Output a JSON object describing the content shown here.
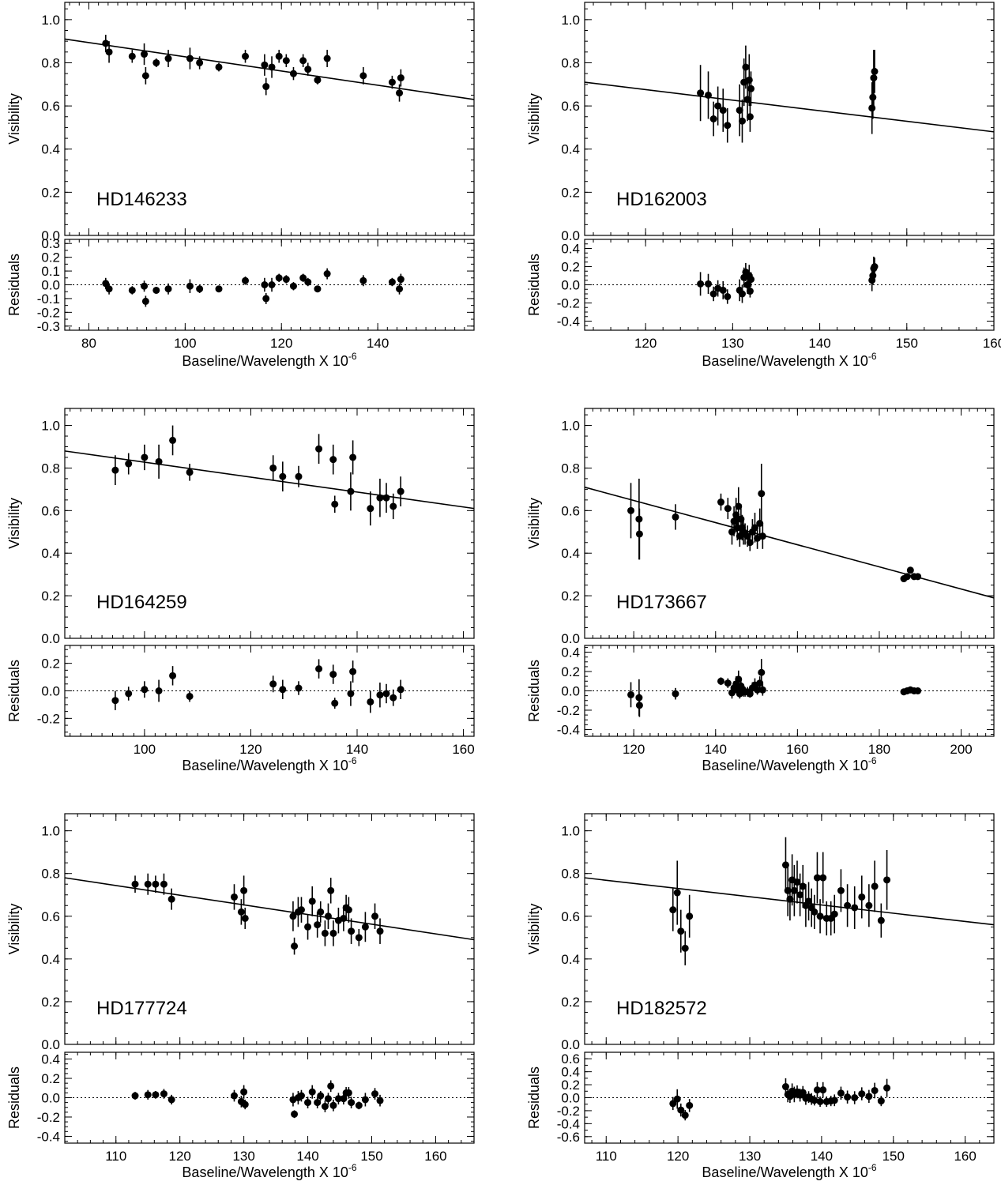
{
  "chart_data": [
    {
      "type": "scatter",
      "star": "HD146233",
      "xlabel": "Baseline/Wavelength X 10",
      "xlabel_exp": "-6",
      "ylabel_top": "Visibility",
      "ylabel_bottom": "Residuals",
      "xlim": [
        75,
        160
      ],
      "xticks": [
        80,
        100,
        120,
        140
      ],
      "ylim_top": [
        0,
        1.08
      ],
      "yticks_top": [
        "0.0",
        "0.2",
        "0.4",
        "0.6",
        "0.8",
        "1.0"
      ],
      "ylim_bottom": [
        -0.33,
        0.33
      ],
      "yticks_bottom": [
        "-0.3",
        "-0.2",
        "-0.1",
        "0.0",
        "0.1",
        "0.2",
        "0.3"
      ],
      "fit_line": {
        "x": [
          75,
          160
        ],
        "y": [
          0.91,
          0.63
        ]
      },
      "x": [
        83.5,
        84.2,
        89.0,
        91.5,
        91.8,
        94.0,
        96.5,
        101.0,
        103.0,
        107.0,
        112.5,
        116.5,
        116.8,
        118.0,
        119.5,
        121.0,
        122.5,
        124.5,
        125.5,
        127.5,
        129.5,
        137.0,
        143.0,
        144.5,
        144.8
      ],
      "visibility": [
        0.89,
        0.85,
        0.83,
        0.84,
        0.74,
        0.8,
        0.82,
        0.82,
        0.8,
        0.78,
        0.83,
        0.79,
        0.69,
        0.78,
        0.83,
        0.81,
        0.75,
        0.81,
        0.77,
        0.72,
        0.82,
        0.74,
        0.71,
        0.66,
        0.73
      ],
      "vis_err": [
        0.04,
        0.05,
        0.03,
        0.05,
        0.04,
        0.02,
        0.04,
        0.05,
        0.03,
        0.02,
        0.03,
        0.05,
        0.04,
        0.05,
        0.03,
        0.03,
        0.03,
        0.03,
        0.03,
        0.02,
        0.04,
        0.04,
        0.03,
        0.04,
        0.04
      ],
      "residuals": [
        0.01,
        -0.03,
        -0.04,
        -0.01,
        -0.12,
        -0.04,
        -0.03,
        -0.01,
        -0.03,
        -0.03,
        0.03,
        0.0,
        -0.1,
        0.0,
        0.05,
        0.04,
        -0.01,
        0.05,
        0.02,
        -0.03,
        0.08,
        0.03,
        0.02,
        -0.03,
        0.04
      ],
      "res_err": [
        0.04,
        0.04,
        0.03,
        0.04,
        0.04,
        0.02,
        0.04,
        0.05,
        0.03,
        0.02,
        0.03,
        0.05,
        0.04,
        0.05,
        0.03,
        0.03,
        0.03,
        0.03,
        0.03,
        0.02,
        0.04,
        0.04,
        0.03,
        0.04,
        0.04
      ]
    },
    {
      "type": "scatter",
      "star": "HD162003",
      "xlabel": "Baseline/Wavelength X 10",
      "xlabel_exp": "-6",
      "ylabel_top": "Visibility",
      "ylabel_bottom": "Residuals",
      "xlim": [
        113,
        160
      ],
      "xticks": [
        120,
        130,
        140,
        150,
        160
      ],
      "ylim_top": [
        0,
        1.08
      ],
      "yticks_top": [
        "0.0",
        "0.2",
        "0.4",
        "0.6",
        "0.8",
        "1.0"
      ],
      "ylim_bottom": [
        -0.5,
        0.5
      ],
      "yticks_bottom": [
        "-0.4",
        "-0.2",
        "0.0",
        "0.2",
        "0.4"
      ],
      "fit_line": {
        "x": [
          113,
          160
        ],
        "y": [
          0.71,
          0.48
        ]
      },
      "x": [
        126.3,
        127.2,
        127.8,
        128.3,
        128.9,
        129.4,
        130.8,
        131.1,
        131.3,
        131.5,
        131.7,
        131.9,
        132.0,
        132.1,
        146.0,
        146.1,
        146.2,
        146.3
      ],
      "visibility": [
        0.66,
        0.65,
        0.54,
        0.6,
        0.58,
        0.51,
        0.58,
        0.53,
        0.71,
        0.78,
        0.63,
        0.72,
        0.55,
        0.68,
        0.59,
        0.64,
        0.73,
        0.76
      ],
      "vis_err": [
        0.13,
        0.11,
        0.08,
        0.09,
        0.1,
        0.08,
        0.12,
        0.1,
        0.11,
        0.1,
        0.1,
        0.12,
        0.07,
        0.08,
        0.12,
        0.1,
        0.13,
        0.1
      ],
      "residuals": [
        0.01,
        0.01,
        -0.1,
        -0.04,
        -0.06,
        -0.13,
        -0.06,
        -0.1,
        0.08,
        0.14,
        0.0,
        0.1,
        -0.07,
        0.06,
        0.05,
        0.1,
        0.18,
        0.2
      ],
      "res_err": [
        0.13,
        0.11,
        0.08,
        0.09,
        0.1,
        0.08,
        0.12,
        0.1,
        0.11,
        0.1,
        0.1,
        0.12,
        0.07,
        0.08,
        0.12,
        0.1,
        0.13,
        0.1
      ]
    },
    {
      "type": "scatter",
      "star": "HD164259",
      "xlabel": "Baseline/Wavelength X 10",
      "xlabel_exp": "-6",
      "ylabel_top": "Visibility",
      "ylabel_bottom": "Residuals",
      "xlim": [
        85,
        162
      ],
      "xticks": [
        100,
        120,
        140,
        160
      ],
      "ylim_top": [
        0,
        1.08
      ],
      "yticks_top": [
        "0.0",
        "0.2",
        "0.4",
        "0.6",
        "0.8",
        "1.0"
      ],
      "ylim_bottom": [
        -0.33,
        0.33
      ],
      "yticks_bottom": [
        "-0.2",
        "0.0",
        "0.2"
      ],
      "fit_line": {
        "x": [
          85,
          162
        ],
        "y": [
          0.88,
          0.61
        ]
      },
      "x": [
        94.5,
        97.0,
        100.0,
        102.7,
        105.3,
        108.5,
        124.2,
        126.0,
        129.0,
        132.8,
        135.5,
        135.8,
        138.8,
        139.2,
        142.5,
        144.3,
        145.5,
        146.8,
        148.2
      ],
      "visibility": [
        0.79,
        0.82,
        0.85,
        0.83,
        0.93,
        0.78,
        0.8,
        0.76,
        0.76,
        0.89,
        0.84,
        0.63,
        0.69,
        0.85,
        0.61,
        0.66,
        0.66,
        0.62,
        0.69
      ],
      "vis_err": [
        0.07,
        0.05,
        0.06,
        0.08,
        0.07,
        0.04,
        0.06,
        0.07,
        0.05,
        0.07,
        0.07,
        0.04,
        0.09,
        0.08,
        0.08,
        0.09,
        0.07,
        0.06,
        0.07
      ],
      "residuals": [
        -0.07,
        -0.02,
        0.01,
        0.0,
        0.11,
        -0.04,
        0.05,
        0.01,
        0.02,
        0.16,
        0.12,
        -0.09,
        -0.02,
        0.14,
        -0.08,
        -0.03,
        -0.02,
        -0.05,
        0.01
      ],
      "res_err": [
        0.07,
        0.05,
        0.06,
        0.08,
        0.07,
        0.04,
        0.06,
        0.07,
        0.05,
        0.07,
        0.07,
        0.04,
        0.09,
        0.08,
        0.08,
        0.09,
        0.07,
        0.06,
        0.07
      ]
    },
    {
      "type": "scatter",
      "star": "HD173667",
      "xlabel": "Baseline/Wavelength X 10",
      "xlabel_exp": "-6",
      "ylabel_top": "Visibility",
      "ylabel_bottom": "Residuals",
      "xlim": [
        108,
        208
      ],
      "xticks": [
        120,
        140,
        160,
        180,
        200
      ],
      "ylim_top": [
        0,
        1.08
      ],
      "yticks_top": [
        "0.0",
        "0.2",
        "0.4",
        "0.6",
        "0.8",
        "1.0"
      ],
      "ylim_bottom": [
        -0.47,
        0.47
      ],
      "yticks_bottom": [
        "-0.4",
        "-0.2",
        "0.0",
        "0.2",
        "0.4"
      ],
      "fit_line": {
        "x": [
          108,
          208
        ],
        "y": [
          0.71,
          0.19
        ]
      },
      "x": [
        119.3,
        121.3,
        121.4,
        130.2,
        141.3,
        143.0,
        144.0,
        144.5,
        145.0,
        145.3,
        145.6,
        145.9,
        146.2,
        146.5,
        146.8,
        147.2,
        147.8,
        148.4,
        149.0,
        149.6,
        150.2,
        150.8,
        151.2,
        151.5,
        186.0,
        186.8,
        187.6,
        188.5,
        189.4
      ],
      "visibility": [
        0.6,
        0.56,
        0.49,
        0.57,
        0.64,
        0.61,
        0.5,
        0.55,
        0.58,
        0.52,
        0.62,
        0.48,
        0.56,
        0.52,
        0.5,
        0.49,
        0.48,
        0.45,
        0.5,
        0.52,
        0.47,
        0.54,
        0.68,
        0.48,
        0.28,
        0.29,
        0.32,
        0.29,
        0.29
      ],
      "vis_err": [
        0.13,
        0.19,
        0.12,
        0.06,
        0.04,
        0.05,
        0.06,
        0.07,
        0.08,
        0.06,
        0.09,
        0.05,
        0.07,
        0.06,
        0.06,
        0.05,
        0.05,
        0.04,
        0.06,
        0.07,
        0.05,
        0.07,
        0.14,
        0.06,
        0.01,
        0.01,
        0.01,
        0.01,
        0.01
      ],
      "residuals": [
        -0.04,
        -0.07,
        -0.15,
        -0.03,
        0.1,
        0.08,
        -0.02,
        0.03,
        0.07,
        0.01,
        0.12,
        -0.03,
        0.05,
        0.02,
        0.0,
        -0.01,
        -0.01,
        -0.03,
        0.03,
        0.06,
        0.01,
        0.08,
        0.19,
        0.01,
        -0.01,
        0.0,
        0.01,
        0.0,
        0.0
      ],
      "res_err": [
        0.13,
        0.19,
        0.12,
        0.06,
        0.04,
        0.05,
        0.06,
        0.07,
        0.08,
        0.06,
        0.09,
        0.05,
        0.07,
        0.06,
        0.06,
        0.05,
        0.05,
        0.04,
        0.06,
        0.07,
        0.05,
        0.07,
        0.14,
        0.06,
        0.01,
        0.01,
        0.01,
        0.01,
        0.01
      ]
    },
    {
      "type": "scatter",
      "star": "HD177724",
      "xlabel": "Baseline/Wavelength X 10",
      "xlabel_exp": "-6",
      "ylabel_top": "Visibility",
      "ylabel_bottom": "Residuals",
      "xlim": [
        102,
        166
      ],
      "xticks": [
        110,
        120,
        130,
        140,
        150,
        160
      ],
      "ylim_top": [
        0,
        1.08
      ],
      "yticks_top": [
        "0.0",
        "0.2",
        "0.4",
        "0.6",
        "0.8",
        "1.0"
      ],
      "ylim_bottom": [
        -0.47,
        0.47
      ],
      "yticks_bottom": [
        "-0.4",
        "-0.2",
        "0.0",
        "0.2",
        "0.4"
      ],
      "fit_line": {
        "x": [
          102,
          166
        ],
        "y": [
          0.78,
          0.49
        ]
      },
      "x": [
        113.0,
        115.0,
        116.2,
        117.5,
        118.7,
        128.5,
        129.6,
        130.0,
        130.2,
        137.7,
        137.9,
        138.5,
        139.0,
        140.0,
        140.7,
        141.5,
        142.0,
        142.7,
        143.2,
        143.6,
        144.0,
        144.8,
        145.6,
        146.0,
        146.4,
        146.8,
        148.0,
        149.0,
        150.5,
        151.3
      ],
      "visibility": [
        0.75,
        0.75,
        0.75,
        0.75,
        0.68,
        0.69,
        0.62,
        0.72,
        0.59,
        0.6,
        0.46,
        0.62,
        0.63,
        0.55,
        0.67,
        0.56,
        0.62,
        0.52,
        0.6,
        0.72,
        0.52,
        0.58,
        0.59,
        0.64,
        0.63,
        0.53,
        0.5,
        0.55,
        0.6,
        0.53
      ],
      "vis_err": [
        0.04,
        0.05,
        0.04,
        0.05,
        0.05,
        0.06,
        0.06,
        0.07,
        0.05,
        0.07,
        0.04,
        0.07,
        0.06,
        0.06,
        0.07,
        0.06,
        0.05,
        0.06,
        0.06,
        0.06,
        0.06,
        0.06,
        0.06,
        0.06,
        0.06,
        0.06,
        0.04,
        0.07,
        0.06,
        0.06
      ],
      "residuals": [
        0.02,
        0.03,
        0.03,
        0.04,
        -0.02,
        0.02,
        -0.04,
        0.06,
        -0.07,
        -0.02,
        -0.17,
        0.0,
        0.02,
        -0.05,
        0.06,
        -0.05,
        0.02,
        -0.09,
        -0.01,
        0.12,
        -0.08,
        -0.01,
        -0.01,
        0.05,
        0.05,
        -0.05,
        -0.08,
        -0.02,
        0.04,
        -0.03
      ],
      "res_err": [
        0.04,
        0.05,
        0.04,
        0.05,
        0.05,
        0.06,
        0.06,
        0.07,
        0.05,
        0.07,
        0.04,
        0.07,
        0.06,
        0.06,
        0.07,
        0.06,
        0.05,
        0.06,
        0.06,
        0.06,
        0.06,
        0.06,
        0.06,
        0.06,
        0.06,
        0.06,
        0.04,
        0.07,
        0.06,
        0.06
      ]
    },
    {
      "type": "scatter",
      "star": "HD182572",
      "xlabel": "Baseline/Wavelength X 10",
      "xlabel_exp": "-6",
      "ylabel_top": "Visibility",
      "ylabel_bottom": "Residuals",
      "xlim": [
        107,
        164
      ],
      "xticks": [
        110,
        120,
        130,
        140,
        150,
        160
      ],
      "ylim_top": [
        0,
        1.08
      ],
      "yticks_top": [
        "0.0",
        "0.2",
        "0.4",
        "0.6",
        "0.8",
        "1.0"
      ],
      "ylim_bottom": [
        -0.7,
        0.7
      ],
      "yticks_bottom": [
        "-0.6",
        "-0.4",
        "-0.2",
        "0.0",
        "0.2",
        "0.4",
        "0.6"
      ],
      "fit_line": {
        "x": [
          107,
          164
        ],
        "y": [
          0.78,
          0.56
        ]
      },
      "x": [
        119.3,
        119.9,
        120.4,
        121.0,
        121.6,
        135.0,
        135.3,
        135.6,
        135.9,
        136.2,
        136.6,
        137.0,
        137.4,
        137.8,
        138.2,
        138.6,
        139.0,
        139.4,
        139.8,
        140.2,
        140.7,
        141.3,
        141.8,
        142.7,
        143.6,
        144.6,
        145.6,
        146.6,
        147.4,
        148.3,
        149.1
      ],
      "visibility": [
        0.63,
        0.71,
        0.53,
        0.45,
        0.6,
        0.84,
        0.72,
        0.68,
        0.77,
        0.72,
        0.76,
        0.7,
        0.74,
        0.65,
        0.67,
        0.64,
        0.62,
        0.78,
        0.6,
        0.78,
        0.59,
        0.59,
        0.61,
        0.72,
        0.65,
        0.64,
        0.69,
        0.65,
        0.74,
        0.58,
        0.77
      ],
      "vis_err": [
        0.1,
        0.15,
        0.1,
        0.08,
        0.1,
        0.13,
        0.12,
        0.1,
        0.12,
        0.12,
        0.1,
        0.1,
        0.1,
        0.1,
        0.09,
        0.09,
        0.08,
        0.12,
        0.08,
        0.12,
        0.08,
        0.08,
        0.09,
        0.1,
        0.1,
        0.1,
        0.1,
        0.1,
        0.12,
        0.08,
        0.14
      ],
      "residuals": [
        -0.09,
        -0.02,
        -0.19,
        -0.27,
        -0.12,
        0.17,
        0.05,
        0.02,
        0.1,
        0.05,
        0.09,
        0.04,
        0.08,
        -0.01,
        0.01,
        -0.02,
        -0.04,
        0.12,
        -0.06,
        0.12,
        -0.06,
        -0.05,
        -0.04,
        0.07,
        0.01,
        0.0,
        0.06,
        0.02,
        0.11,
        -0.05,
        0.15
      ],
      "res_err": [
        0.1,
        0.15,
        0.1,
        0.08,
        0.1,
        0.13,
        0.12,
        0.1,
        0.12,
        0.12,
        0.1,
        0.1,
        0.1,
        0.1,
        0.09,
        0.09,
        0.08,
        0.12,
        0.08,
        0.12,
        0.08,
        0.08,
        0.09,
        0.1,
        0.1,
        0.1,
        0.1,
        0.1,
        0.12,
        0.08,
        0.14
      ]
    }
  ]
}
